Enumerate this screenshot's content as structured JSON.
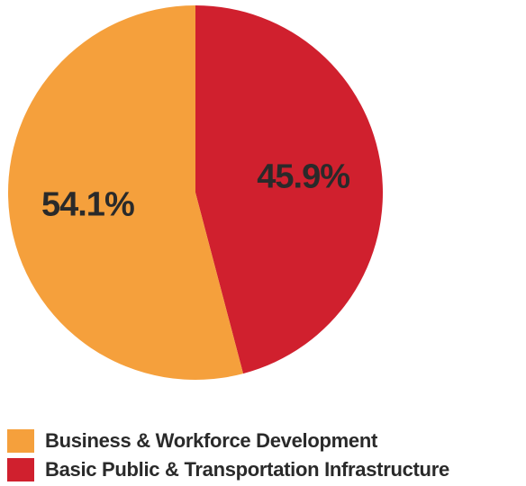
{
  "chart_data": {
    "type": "pie",
    "title": "",
    "slices": [
      {
        "label": "Basic Public & Transportation Infrastructure",
        "value": 45.9,
        "display": "45.9%",
        "color": "#d0202e"
      },
      {
        "label": "Business & Workforce Development",
        "value": 54.1,
        "display": "54.1%",
        "color": "#f5a03c"
      }
    ],
    "legend_placement": "bottom-left",
    "legend": [
      {
        "label": "Business & Workforce Development",
        "color": "#f5a03c"
      },
      {
        "label": "Basic Public & Transportation Infrastructure",
        "color": "#d0202e"
      }
    ]
  }
}
